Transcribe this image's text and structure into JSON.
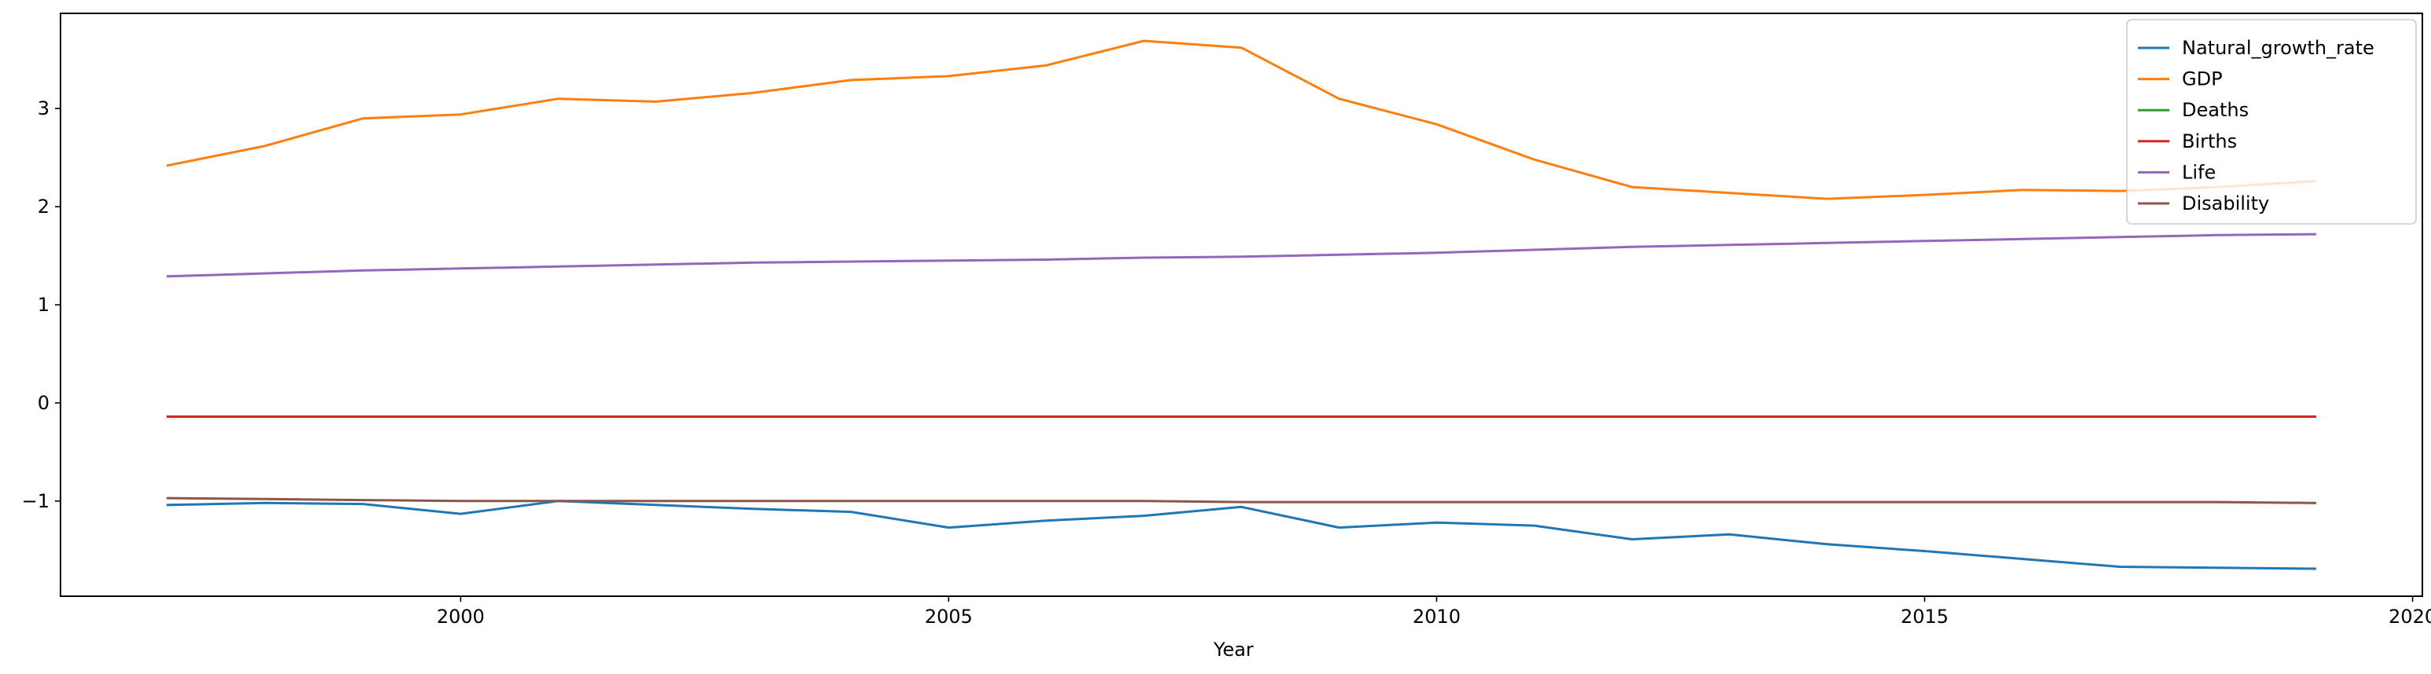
{
  "chart_data": {
    "type": "line",
    "title": "",
    "xlabel": "Year",
    "ylabel": "",
    "xlim": [
      1995.9,
      2020.1
    ],
    "ylim": [
      -1.97,
      3.97
    ],
    "xticks": [
      2000,
      2005,
      2010,
      2015,
      2020
    ],
    "yticks": [
      -1,
      0,
      1,
      2,
      3
    ],
    "ytick_labels": [
      "−1",
      "0",
      "1",
      "2",
      "3"
    ],
    "grid": false,
    "legend_position": "top-right",
    "x": [
      1997,
      1998,
      1999,
      2000,
      2001,
      2002,
      2003,
      2004,
      2005,
      2006,
      2007,
      2008,
      2009,
      2010,
      2011,
      2012,
      2013,
      2014,
      2015,
      2016,
      2017,
      2018,
      2019
    ],
    "series": [
      {
        "name": "Natural_growth_rate",
        "color": "#1f77b4",
        "values": [
          -1.04,
          -1.02,
          -1.03,
          -1.13,
          -1.0,
          -1.04,
          -1.08,
          -1.11,
          -1.27,
          -1.2,
          -1.15,
          -1.06,
          -1.27,
          -1.22,
          -1.25,
          -1.39,
          -1.34,
          -1.44,
          -1.51,
          -1.59,
          -1.67,
          -1.68,
          -1.69
        ]
      },
      {
        "name": "GDP",
        "color": "#ff7f0e",
        "values": [
          2.42,
          2.62,
          2.9,
          2.94,
          3.1,
          3.07,
          3.16,
          3.29,
          3.33,
          3.44,
          3.69,
          3.62,
          3.1,
          2.84,
          2.48,
          2.2,
          2.14,
          2.08,
          2.12,
          2.17,
          2.16,
          2.2,
          2.26
        ]
      },
      {
        "name": "Deaths",
        "color": "#2ca02c",
        "values": [
          -0.14,
          -0.14,
          -0.14,
          -0.14,
          -0.14,
          -0.14,
          -0.14,
          -0.14,
          -0.14,
          -0.14,
          -0.14,
          -0.14,
          -0.14,
          -0.14,
          -0.14,
          -0.14,
          -0.14,
          -0.14,
          -0.14,
          -0.14,
          -0.14,
          -0.14,
          -0.14
        ]
      },
      {
        "name": "Births",
        "color": "#d62728",
        "values": [
          -0.14,
          -0.14,
          -0.14,
          -0.14,
          -0.14,
          -0.14,
          -0.14,
          -0.14,
          -0.14,
          -0.14,
          -0.14,
          -0.14,
          -0.14,
          -0.14,
          -0.14,
          -0.14,
          -0.14,
          -0.14,
          -0.14,
          -0.14,
          -0.14,
          -0.14,
          -0.14
        ]
      },
      {
        "name": "Life",
        "color": "#9467bd",
        "values": [
          1.29,
          1.32,
          1.35,
          1.37,
          1.39,
          1.41,
          1.43,
          1.44,
          1.45,
          1.46,
          1.48,
          1.49,
          1.51,
          1.53,
          1.56,
          1.59,
          1.61,
          1.63,
          1.65,
          1.67,
          1.69,
          1.71,
          1.72
        ]
      },
      {
        "name": "Disability",
        "color": "#8c564b",
        "values": [
          -0.97,
          -0.98,
          -0.99,
          -1.0,
          -1.0,
          -1.0,
          -1.0,
          -1.0,
          -1.0,
          -1.0,
          -1.0,
          -1.01,
          -1.01,
          -1.01,
          -1.01,
          -1.01,
          -1.01,
          -1.01,
          -1.01,
          -1.01,
          -1.01,
          -1.01,
          -1.02
        ]
      }
    ]
  }
}
